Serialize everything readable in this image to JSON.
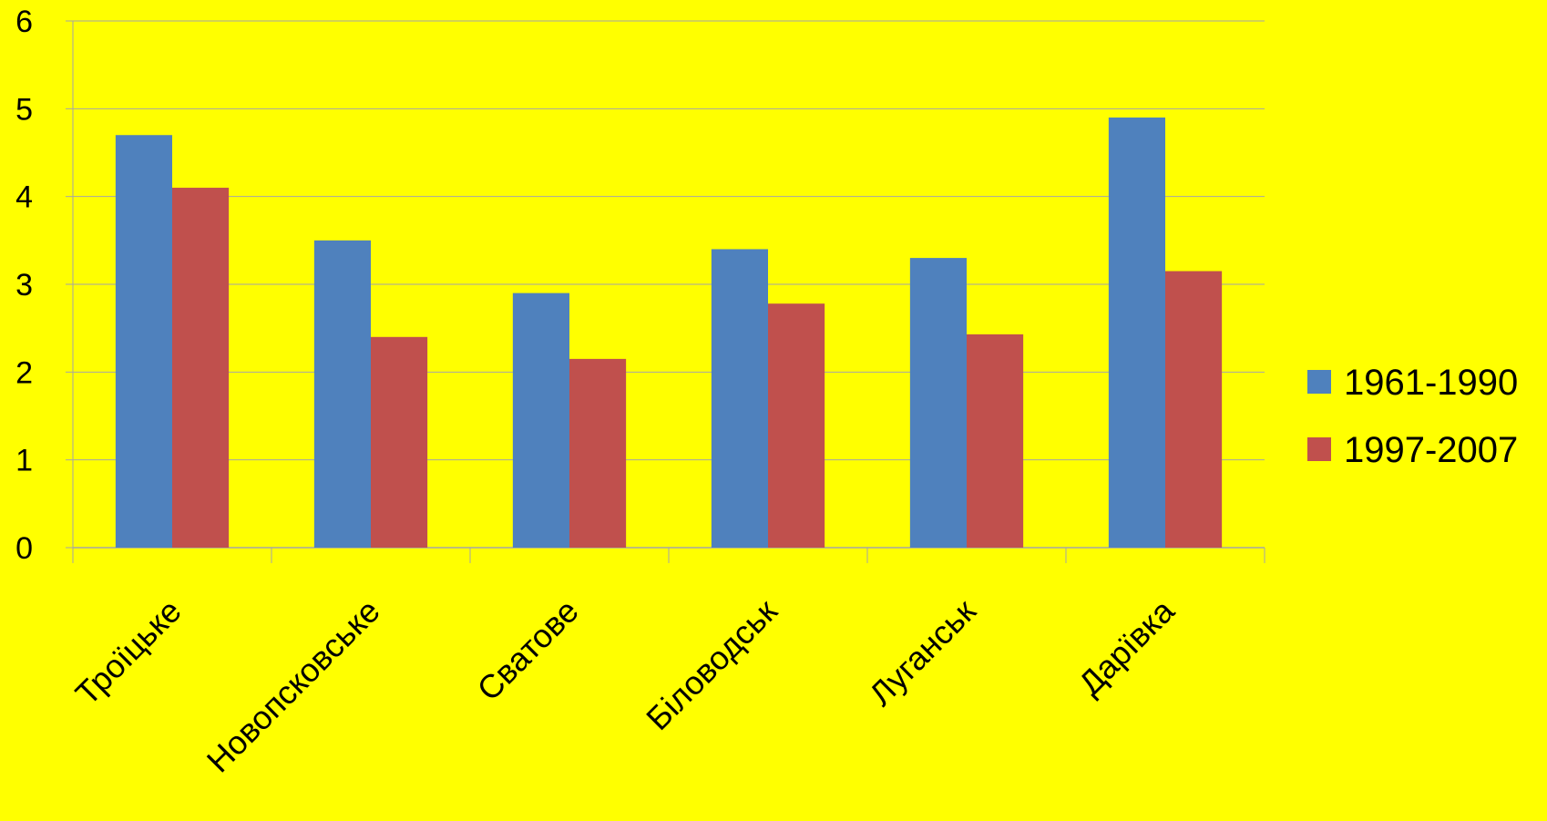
{
  "chart_data": {
    "type": "bar",
    "title": "",
    "xlabel": "",
    "ylabel": "",
    "categories": [
      "Троїцьке",
      "Новопсковське",
      "Сватове",
      "Біловодськ",
      "Луганськ",
      "Дарївка"
    ],
    "series": [
      {
        "name": "1961-1990",
        "values": [
          4.7,
          3.5,
          2.9,
          3.4,
          3.3,
          4.9
        ],
        "color": "#4F81BD"
      },
      {
        "name": "1997-2007",
        "values": [
          4.1,
          2.4,
          2.15,
          2.78,
          2.43,
          3.15
        ],
        "color": "#C0504D"
      }
    ],
    "ylim": [
      0,
      6
    ],
    "yticks": [
      0,
      1,
      2,
      3,
      4,
      5,
      6
    ],
    "grid": true,
    "legend": "right",
    "background": "#FFFF00",
    "gridline_color": "#A6A6A6"
  }
}
